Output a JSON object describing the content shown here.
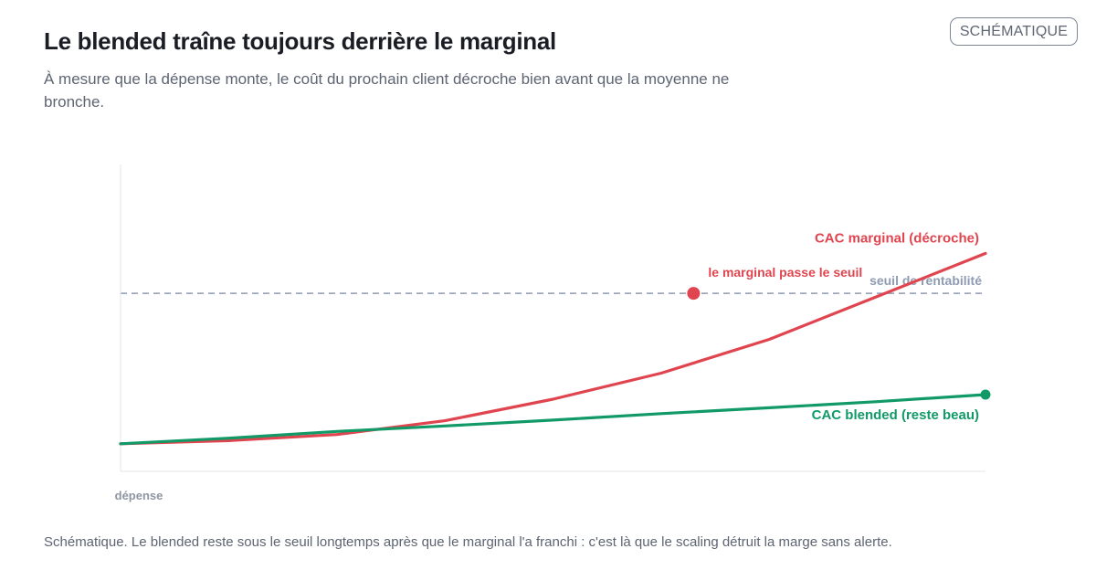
{
  "header": {
    "title": "Le blended traîne toujours derrière le marginal",
    "subtitle": "À mesure que la dépense monte, le coût du prochain client décroche bien avant que la moyenne ne bronche.",
    "badge": "SCHÉMATIQUE"
  },
  "caption": "Schématique. Le blended reste sous le seuil longtemps après que le marginal l'a franchi : c'est là que le scaling détruit la marge sans alerte.",
  "chart_data": {
    "type": "line",
    "title": "Le blended traîne toujours derrière le marginal",
    "xlabel": "dépense",
    "ylabel": "",
    "xlim": [
      0,
      8
    ],
    "ylim": [
      0,
      10
    ],
    "grid": false,
    "x": [
      0,
      1,
      2,
      3,
      4,
      5,
      6,
      7,
      8
    ],
    "series": [
      {
        "name": "CAC marginal (décroche)",
        "color": "#e0454f",
        "values": [
          0.9,
          1.0,
          1.2,
          1.65,
          2.35,
          3.2,
          4.3,
          5.7,
          7.1
        ],
        "label_align": "end"
      },
      {
        "name": "CAC blended (reste beau)",
        "color": "#119a68",
        "values": [
          0.9,
          1.08,
          1.3,
          1.48,
          1.67,
          1.88,
          2.07,
          2.27,
          2.5
        ],
        "label_align": "end",
        "end_marker": true
      }
    ],
    "threshold": {
      "label": "seuil de rentabilité",
      "value": 5.8,
      "color": "#8e9bb2"
    },
    "annotations": [
      {
        "text": "le marginal passe le seuil",
        "x": 5.3,
        "y": 5.8,
        "color": "#e0454f"
      }
    ],
    "colors": {
      "axis": "#e2e5ea",
      "axis_label": "#8e96a3"
    }
  }
}
